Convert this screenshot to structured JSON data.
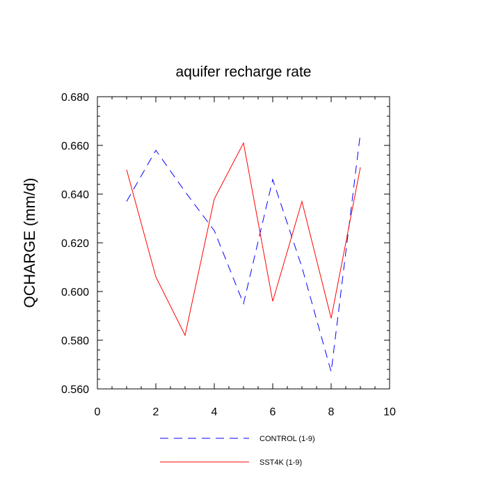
{
  "chart_data": {
    "type": "line",
    "title": "aquifer recharge rate",
    "xlabel": "",
    "ylabel": "QCHARGE  (mm/d)",
    "xlim": [
      0,
      10
    ],
    "ylim": [
      0.56,
      0.68
    ],
    "xticks": [
      0,
      2,
      4,
      6,
      8,
      10
    ],
    "xtick_labels": [
      "0",
      "2",
      "4",
      "6",
      "8",
      "10"
    ],
    "yticks": [
      0.56,
      0.58,
      0.6,
      0.62,
      0.64,
      0.66,
      0.68
    ],
    "ytick_labels": [
      "0.560",
      "0.580",
      "0.600",
      "0.620",
      "0.640",
      "0.660",
      "0.680"
    ],
    "grid": false,
    "legend_position": "bottom-center",
    "series": [
      {
        "name": "CONTROL (1-9)",
        "color": "#0000ff",
        "style": "dashed",
        "x": [
          1,
          2,
          3,
          4,
          5,
          6,
          7,
          8,
          9
        ],
        "values": [
          0.637,
          0.658,
          0.641,
          0.625,
          0.595,
          0.646,
          0.61,
          0.567,
          0.665
        ]
      },
      {
        "name": "SST4K (1-9)",
        "color": "#ff0000",
        "style": "solid",
        "x": [
          1,
          2,
          3,
          4,
          5,
          6,
          7,
          8,
          9
        ],
        "values": [
          0.65,
          0.606,
          0.582,
          0.638,
          0.661,
          0.596,
          0.637,
          0.589,
          0.651
        ]
      }
    ]
  }
}
